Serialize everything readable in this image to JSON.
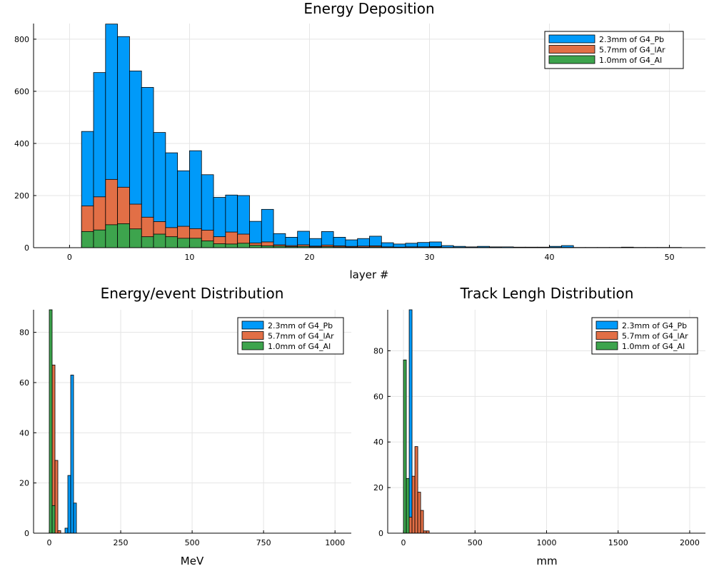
{
  "colors": {
    "series_1": "#009af9",
    "series_2": "#e26f46",
    "series_3": "#3da44d",
    "grid": "#e5e5e5",
    "axis": "#000000",
    "edge": "#000000"
  },
  "chart_data": [
    {
      "type": "bar",
      "title": "Energy Deposition",
      "xlabel": "layer #",
      "ylabel": "",
      "xlim": [
        -3,
        53
      ],
      "ylim": [
        0,
        860
      ],
      "xticks": [
        0,
        10,
        20,
        30,
        40,
        50
      ],
      "xtick_labels": [
        "0",
        "10",
        "20",
        "30",
        "40",
        "50"
      ],
      "yticks": [
        0,
        200,
        400,
        600,
        800
      ],
      "ytick_labels": [
        "0",
        "200",
        "400",
        "600",
        "800"
      ],
      "grid": true,
      "legend_position": "top-right",
      "bin_edges": [
        1,
        2,
        3,
        4,
        5,
        6,
        7,
        8,
        9,
        10,
        11,
        12,
        13,
        14,
        15,
        16,
        17,
        18,
        19,
        20,
        21,
        22,
        23,
        24,
        25,
        26,
        27,
        28,
        29,
        30,
        31,
        32,
        33,
        34,
        35,
        36,
        37,
        38,
        39,
        40,
        41,
        42,
        43,
        44,
        45,
        46,
        47,
        48,
        49,
        50,
        51
      ],
      "series": [
        {
          "name": "2.3mm of G4_Pb",
          "color": "#009af9",
          "values": [
            446,
            672,
            858,
            810,
            678,
            615,
            442,
            364,
            295,
            372,
            280,
            193,
            202,
            200,
            101,
            147,
            54,
            40,
            63,
            35,
            62,
            40,
            30,
            35,
            44,
            19,
            14,
            17,
            20,
            22,
            8,
            5,
            3,
            5,
            3,
            3,
            2,
            2,
            2,
            5,
            8,
            1,
            1,
            1,
            1,
            2,
            1,
            1,
            1,
            1
          ]
        },
        {
          "name": "5.7mm of G4_lAr",
          "color": "#e26f46",
          "values": [
            160,
            195,
            262,
            232,
            167,
            117,
            100,
            77,
            82,
            73,
            67,
            42,
            60,
            52,
            18,
            22,
            11,
            8,
            11,
            6,
            10,
            7,
            5,
            6,
            7,
            3,
            2,
            3,
            3,
            4,
            1,
            1,
            1,
            1,
            1,
            0,
            0,
            0,
            0,
            1,
            1,
            0,
            0,
            0,
            0,
            0,
            0,
            0,
            0,
            0
          ]
        },
        {
          "name": "1.0mm of G4_Al",
          "color": "#3da44d",
          "values": [
            62,
            68,
            88,
            92,
            72,
            42,
            52,
            42,
            36,
            36,
            26,
            15,
            14,
            17,
            9,
            7,
            6,
            4,
            5,
            3,
            4,
            3,
            2,
            2,
            3,
            1,
            1,
            1,
            1,
            2,
            0,
            0,
            0,
            0,
            0,
            0,
            0,
            0,
            0,
            0,
            0,
            0,
            0,
            0,
            0,
            0,
            0,
            0,
            0,
            0
          ]
        }
      ]
    },
    {
      "type": "bar",
      "title": "Energy/event Distribution",
      "xlabel": "MeV",
      "ylabel": "",
      "xlim": [
        -55,
        1057
      ],
      "ylim": [
        0,
        89
      ],
      "xticks": [
        0,
        250,
        500,
        750,
        1000
      ],
      "xtick_labels": [
        "0",
        "250",
        "500",
        "750",
        "1000"
      ],
      "yticks": [
        0,
        20,
        40,
        60,
        80
      ],
      "ytick_labels": [
        "0",
        "20",
        "40",
        "60",
        "80"
      ],
      "grid": true,
      "legend_position": "top-right",
      "series": [
        {
          "name": "2.3mm of G4_Pb",
          "color": "#009af9",
          "bins": [
            {
              "x0": 55,
              "x1": 65,
              "value": 2
            },
            {
              "x0": 65,
              "x1": 75,
              "value": 23
            },
            {
              "x0": 75,
              "x1": 85,
              "value": 63
            },
            {
              "x0": 85,
              "x1": 95,
              "value": 12
            }
          ]
        },
        {
          "name": "5.7mm of G4_lAr",
          "color": "#e26f46",
          "bins": [
            {
              "x0": 10,
              "x1": 20,
              "value": 67
            },
            {
              "x0": 20,
              "x1": 30,
              "value": 29
            },
            {
              "x0": 30,
              "x1": 40,
              "value": 1
            }
          ]
        },
        {
          "name": "1.0mm of G4_Al",
          "color": "#3da44d",
          "bins": [
            {
              "x0": 0,
              "x1": 10,
              "value": 89
            },
            {
              "x0": 10,
              "x1": 20,
              "value": 11
            }
          ]
        }
      ]
    },
    {
      "type": "bar",
      "title": "Track Lengh Distribution",
      "xlabel": "mm",
      "ylabel": "",
      "xlim": [
        -110,
        2110
      ],
      "ylim": [
        0,
        98
      ],
      "xticks": [
        0,
        500,
        1000,
        1500,
        2000
      ],
      "xtick_labels": [
        "0",
        "500",
        "1000",
        "1500",
        "2000"
      ],
      "yticks": [
        0,
        20,
        40,
        60,
        80
      ],
      "ytick_labels": [
        "0",
        "20",
        "40",
        "60",
        "80"
      ],
      "grid": true,
      "legend_position": "top-right",
      "series": [
        {
          "name": "2.3mm of G4_Pb",
          "color": "#009af9",
          "bins": [
            {
              "x0": 40,
              "x1": 60,
              "value": 98
            },
            {
              "x0": 60,
              "x1": 80,
              "value": 2
            }
          ]
        },
        {
          "name": "5.7mm of G4_lAr",
          "color": "#e26f46",
          "bins": [
            {
              "x0": 40,
              "x1": 60,
              "value": 7
            },
            {
              "x0": 60,
              "x1": 80,
              "value": 25
            },
            {
              "x0": 80,
              "x1": 100,
              "value": 38
            },
            {
              "x0": 100,
              "x1": 120,
              "value": 18
            },
            {
              "x0": 120,
              "x1": 140,
              "value": 10
            },
            {
              "x0": 140,
              "x1": 160,
              "value": 1
            },
            {
              "x0": 160,
              "x1": 180,
              "value": 1
            }
          ]
        },
        {
          "name": "1.0mm of G4_Al",
          "color": "#3da44d",
          "bins": [
            {
              "x0": 0,
              "x1": 20,
              "value": 76
            },
            {
              "x0": 20,
              "x1": 40,
              "value": 24
            }
          ]
        }
      ]
    }
  ]
}
